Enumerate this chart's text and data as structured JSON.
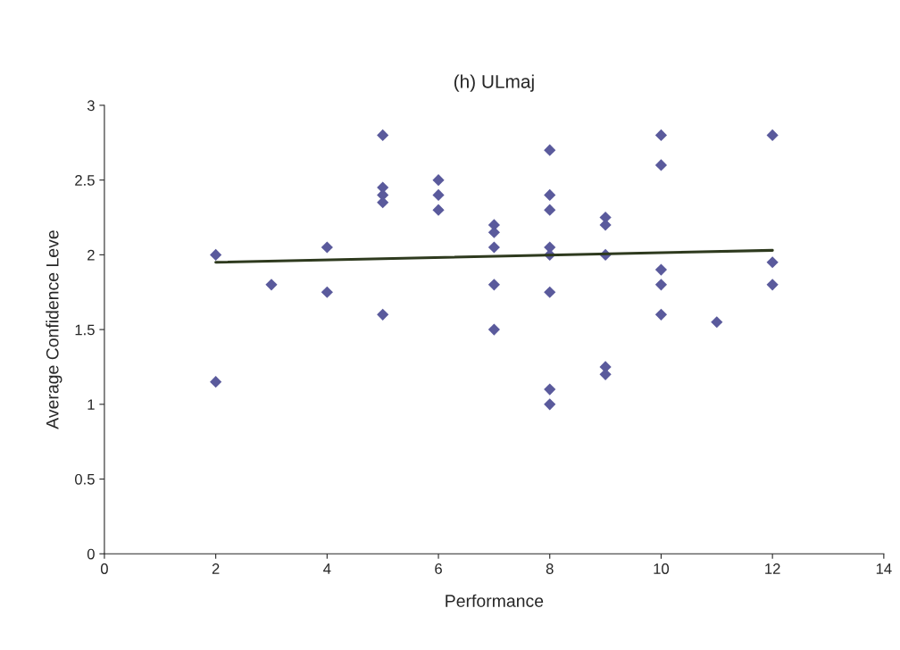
{
  "chart_data": {
    "type": "scatter",
    "title": "(h) ULmaj",
    "xlabel": "Performance",
    "ylabel": "Average Confidence Leve",
    "xlim": [
      0,
      14
    ],
    "xticks": [
      0,
      2,
      4,
      6,
      8,
      10,
      12,
      14
    ],
    "ylim": [
      0,
      3
    ],
    "yticks": [
      0,
      0.5,
      1,
      1.5,
      2,
      2.5,
      3
    ],
    "grid": false,
    "legend": false,
    "series": [
      {
        "marker": "diamond",
        "color": "#5a5a9c",
        "x": [
          2,
          2,
          3,
          4,
          4,
          5,
          5,
          5,
          5,
          5,
          6,
          6,
          6,
          7,
          7,
          7,
          7,
          7,
          8,
          8,
          8,
          8,
          8,
          8,
          8,
          8,
          9,
          9,
          9,
          9,
          9,
          10,
          10,
          10,
          10,
          10,
          11,
          12,
          12,
          12
        ],
        "values": [
          2.0,
          1.15,
          1.8,
          2.05,
          1.75,
          2.8,
          2.45,
          2.4,
          2.35,
          1.6,
          2.5,
          2.4,
          2.3,
          2.2,
          2.15,
          2.05,
          1.8,
          1.5,
          2.7,
          2.4,
          2.3,
          2.05,
          2.0,
          1.75,
          1.1,
          1.0,
          2.25,
          2.2,
          2.0,
          1.25,
          1.2,
          2.8,
          2.6,
          1.9,
          1.8,
          1.6,
          1.55,
          2.8,
          1.95,
          1.8
        ]
      },
      {
        "type": "line",
        "marker": "none",
        "line_style": "solid",
        "color": "#2e3a1e",
        "x": [
          2,
          12
        ],
        "values": [
          1.95,
          2.03
        ]
      }
    ]
  }
}
